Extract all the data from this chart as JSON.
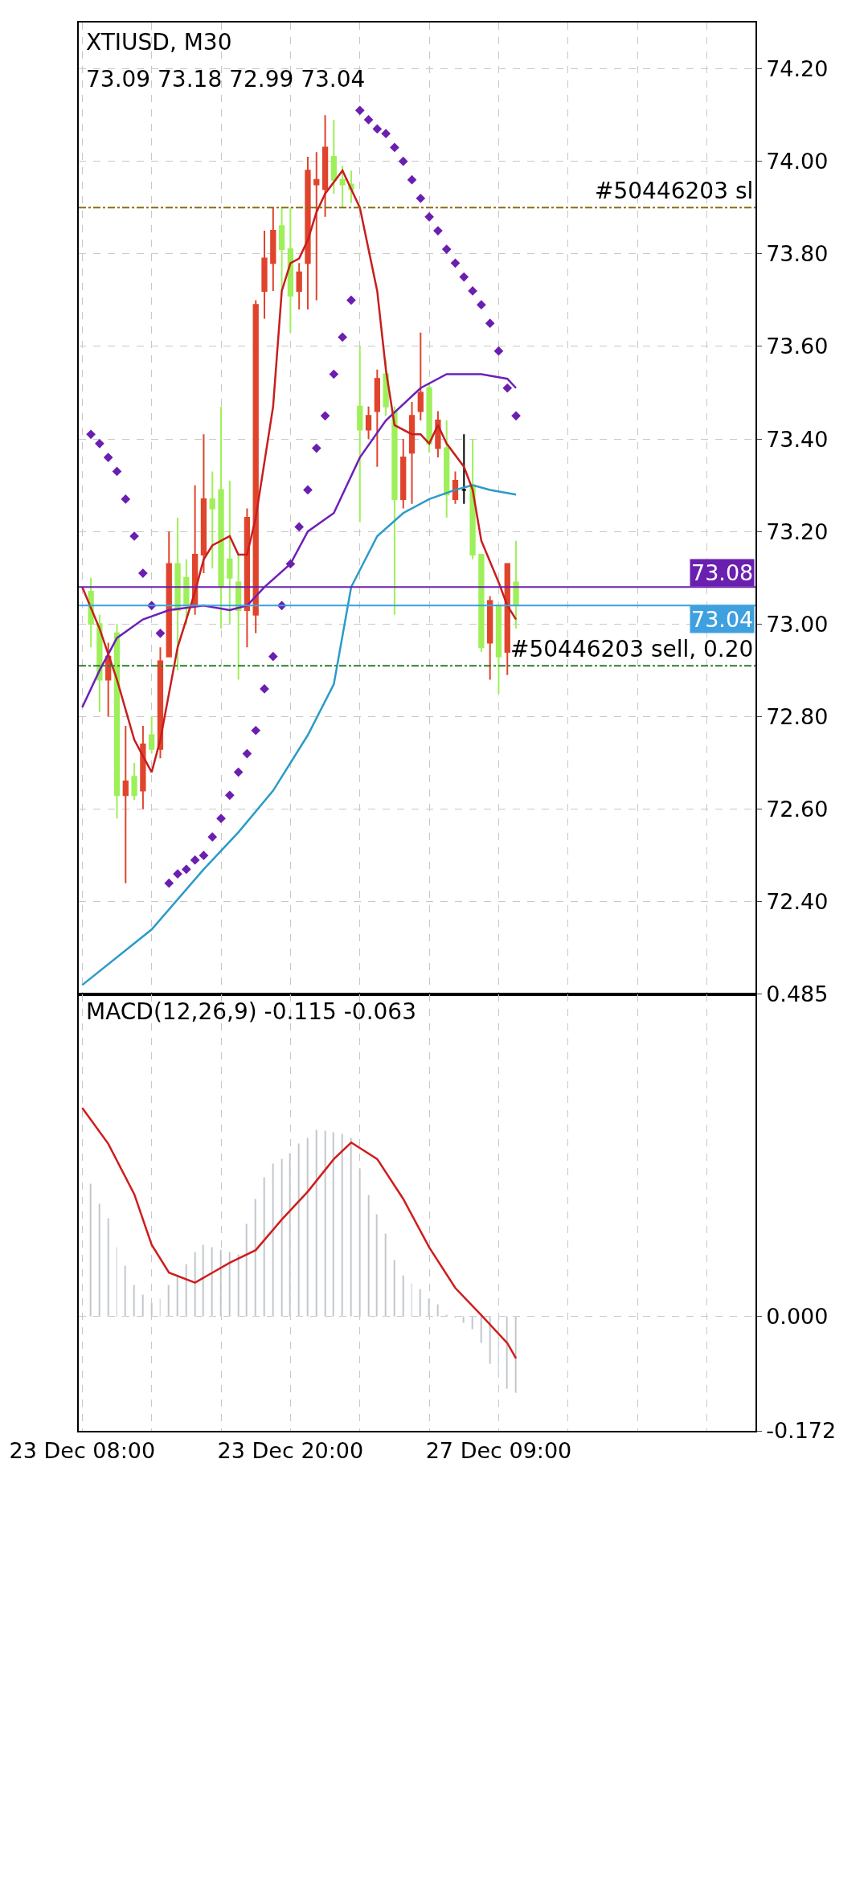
{
  "chart_data": [
    {
      "type": "candlestick",
      "title": "XTIUSD, M30",
      "subtitle": "73.09 73.18 72.99 73.04",
      "categories": [
        null,
        null,
        null,
        null,
        null,
        null,
        null,
        null,
        null,
        null,
        null,
        null,
        null,
        null,
        null,
        null,
        null,
        null,
        null,
        null,
        null,
        null,
        null,
        null,
        null,
        null,
        null,
        null,
        null,
        null,
        null,
        null,
        null,
        null,
        null,
        null,
        null,
        null,
        null,
        null,
        null,
        null,
        null,
        null,
        null,
        null,
        null,
        null,
        null,
        null,
        null,
        null,
        null,
        null,
        null,
        null,
        null,
        null,
        null,
        null,
        null,
        null,
        null,
        null,
        null,
        null,
        null,
        null,
        null,
        null,
        null,
        null,
        null,
        null,
        null,
        null,
        null,
        null
      ],
      "ohlc": [
        null,
        [
          73.07,
          73.1,
          72.95,
          73.0
        ],
        [
          73.0,
          73.02,
          72.81,
          72.88
        ],
        [
          72.88,
          72.96,
          72.8,
          72.93
        ],
        [
          72.98,
          73.0,
          72.58,
          72.63
        ],
        [
          72.63,
          72.78,
          72.44,
          72.66
        ],
        [
          72.67,
          72.7,
          72.62,
          72.63
        ],
        [
          72.64,
          72.78,
          72.6,
          72.74
        ],
        [
          72.76,
          72.8,
          72.72,
          72.73
        ],
        [
          72.73,
          72.95,
          72.71,
          72.92
        ],
        [
          72.93,
          73.2,
          72.93,
          73.13
        ],
        [
          73.13,
          73.23,
          72.9,
          73.03
        ],
        [
          73.1,
          73.14,
          73.0,
          73.04
        ],
        [
          73.04,
          73.3,
          73.02,
          73.15
        ],
        [
          73.15,
          73.41,
          73.11,
          73.27
        ],
        [
          73.27,
          73.33,
          73.12,
          73.25
        ],
        [
          73.29,
          73.47,
          72.99,
          73.08
        ],
        [
          73.14,
          73.31,
          73.0,
          73.1
        ],
        [
          73.09,
          73.15,
          72.88,
          73.03
        ],
        [
          73.03,
          73.25,
          72.95,
          73.23
        ],
        [
          73.02,
          73.7,
          72.98,
          73.69
        ],
        [
          73.72,
          73.85,
          73.66,
          73.79
        ],
        [
          73.78,
          73.9,
          73.72,
          73.85
        ],
        [
          73.86,
          73.9,
          73.72,
          73.81
        ],
        [
          73.81,
          73.9,
          73.63,
          73.71
        ],
        [
          73.72,
          73.78,
          73.68,
          73.76
        ],
        [
          73.78,
          74.01,
          73.68,
          73.98
        ],
        [
          73.95,
          74.02,
          73.7,
          73.96
        ],
        [
          73.94,
          74.1,
          73.88,
          74.03
        ],
        [
          74.01,
          74.09,
          73.93,
          73.96
        ],
        [
          73.96,
          73.99,
          73.9,
          73.95
        ],
        [
          73.95,
          73.98,
          73.91,
          73.94
        ],
        [
          73.47,
          73.6,
          73.22,
          73.42
        ],
        [
          73.42,
          73.47,
          73.4,
          73.45
        ],
        [
          73.46,
          73.55,
          73.34,
          73.53
        ],
        [
          73.54,
          73.57,
          73.45,
          73.47
        ],
        [
          73.46,
          73.47,
          73.02,
          73.27
        ],
        [
          73.27,
          73.4,
          73.25,
          73.36
        ],
        [
          73.37,
          73.48,
          73.26,
          73.45
        ],
        [
          73.46,
          73.63,
          73.44,
          73.5
        ],
        [
          73.51,
          73.52,
          73.37,
          73.39
        ],
        [
          73.38,
          73.46,
          73.36,
          73.44
        ],
        [
          73.38,
          73.44,
          73.23,
          73.28
        ],
        [
          73.27,
          73.33,
          73.26,
          73.31
        ],
        [
          73.29,
          73.41,
          73.26,
          73.29
        ],
        [
          73.3,
          73.4,
          73.14,
          73.15
        ],
        [
          73.15,
          73.15,
          72.94,
          72.95
        ],
        [
          72.96,
          73.06,
          72.88,
          73.05
        ],
        [
          73.04,
          73.04,
          72.85,
          72.93
        ],
        [
          72.94,
          73.13,
          72.89,
          73.13
        ],
        [
          73.09,
          73.18,
          72.99,
          73.04
        ],
        null,
        null,
        null,
        null,
        null,
        null,
        null,
        null,
        null,
        null,
        null,
        null,
        null,
        null,
        null,
        null,
        null,
        null,
        null,
        null,
        null,
        null,
        null,
        null,
        null,
        null,
        null
      ],
      "colors": [
        null,
        "#9ef05a",
        "#9ef05a",
        "#e0442c",
        "#9ef05a",
        "#e0442c",
        "#9ef05a",
        "#e0442c",
        "#9ef05a",
        "#e0442c",
        "#e0442c",
        "#9ef05a",
        "#9ef05a",
        "#e0442c",
        "#e0442c",
        "#9ef05a",
        "#9ef05a",
        "#9ef05a",
        "#9ef05a",
        "#e0442c",
        "#e0442c",
        "#e0442c",
        "#e0442c",
        "#9ef05a",
        "#9ef05a",
        "#e0442c",
        "#e0442c",
        "#e0442c",
        "#e0442c",
        "#9ef05a",
        "#9ef05a",
        "#9ef05a",
        "#9ef05a",
        "#e0442c",
        "#e0442c",
        "#9ef05a",
        "#9ef05a",
        "#e0442c",
        "#e0442c",
        "#e0442c",
        "#9ef05a",
        "#e0442c",
        "#9ef05a",
        "#e0442c",
        "#000000",
        "#9ef05a",
        "#9ef05a",
        "#e0442c",
        "#9ef05a",
        "#e0442c",
        "#9ef05a",
        null,
        null,
        null,
        null,
        null,
        null,
        null,
        null,
        null,
        null,
        null,
        null,
        null,
        null,
        null,
        null,
        null,
        null,
        null,
        null,
        null,
        null,
        null,
        null,
        null,
        null,
        null
      ],
      "series": [
        {
          "type": "line",
          "color": "#6e1fb8",
          "values": [
            72.82,
            null,
            72.9,
            null,
            72.97,
            null,
            null,
            73.01,
            null,
            null,
            73.03,
            null,
            null,
            null,
            73.04,
            null,
            null,
            73.03,
            null,
            73.04,
            null,
            73.08,
            null,
            null,
            73.13,
            null,
            73.2,
            null,
            null,
            73.24,
            null,
            null,
            73.36,
            null,
            null,
            73.44,
            null,
            null,
            null,
            73.51,
            null,
            null,
            73.54,
            null,
            null,
            null,
            73.54,
            null,
            null,
            73.53,
            73.51,
            null,
            null,
            null,
            null,
            null,
            null,
            null,
            null,
            null,
            null,
            null,
            null,
            null,
            null,
            null,
            null,
            null,
            null,
            null,
            null,
            null,
            null,
            null,
            null,
            null,
            null,
            null
          ]
        },
        {
          "type": "line",
          "color": "#2a9bc8",
          "values": [
            72.22,
            null,
            null,
            null,
            null,
            null,
            null,
            null,
            72.34,
            null,
            null,
            null,
            null,
            null,
            72.47,
            null,
            null,
            null,
            72.55,
            null,
            null,
            null,
            72.64,
            null,
            null,
            null,
            72.76,
            null,
            null,
            72.87,
            null,
            73.08,
            null,
            null,
            73.19,
            null,
            null,
            73.24,
            null,
            null,
            73.27,
            null,
            null,
            73.29,
            null,
            73.3,
            null,
            73.29,
            null,
            null,
            73.28,
            null,
            null,
            null,
            null,
            null,
            null,
            null,
            null,
            null,
            null,
            null,
            null,
            null,
            null,
            null,
            null,
            null,
            null,
            null,
            null,
            null,
            null,
            null,
            null,
            null,
            null,
            null
          ]
        },
        {
          "type": "line",
          "color": "#c81e1e",
          "values": [
            73.08,
            null,
            72.99,
            null,
            72.88,
            null,
            72.75,
            null,
            72.68,
            72.75,
            null,
            72.95,
            null,
            73.07,
            73.14,
            73.17,
            null,
            73.19,
            73.15,
            73.15,
            73.23,
            null,
            73.47,
            73.72,
            73.78,
            73.79,
            73.83,
            73.89,
            73.93,
            null,
            73.98,
            null,
            73.9,
            null,
            73.72,
            73.55,
            73.43,
            null,
            73.41,
            73.41,
            73.39,
            73.43,
            73.39,
            null,
            73.34,
            73.29,
            73.18,
            null,
            73.09,
            73.04,
            73.01,
            null,
            null,
            null,
            null,
            null,
            null,
            null,
            null,
            null,
            null,
            null,
            null,
            null,
            null,
            null,
            null,
            null,
            null,
            null,
            null,
            null,
            null,
            null,
            null,
            null,
            null,
            null
          ]
        },
        {
          "type": "scatter",
          "marker": "diamond",
          "color": "#6a1fb0",
          "values": [
            null,
            73.41,
            73.39,
            73.36,
            73.33,
            73.27,
            73.19,
            73.11,
            73.04,
            72.98,
            72.44,
            72.46,
            72.47,
            72.49,
            72.5,
            72.54,
            72.58,
            72.63,
            72.68,
            72.72,
            72.77,
            72.86,
            72.93,
            73.04,
            73.13,
            73.21,
            73.29,
            73.38,
            73.45,
            73.54,
            73.62,
            73.7,
            74.11,
            74.09,
            74.07,
            74.06,
            74.03,
            74.0,
            73.96,
            73.92,
            73.88,
            73.85,
            73.81,
            73.78,
            73.75,
            73.72,
            73.69,
            73.65,
            73.59,
            73.51,
            73.45,
            null,
            null,
            null,
            null,
            null,
            null,
            null,
            null,
            null,
            null,
            null,
            null,
            null,
            null,
            null,
            null,
            null,
            null,
            null,
            null,
            null,
            null,
            null,
            null,
            null,
            null,
            null
          ]
        }
      ],
      "ylim": [
        72.2,
        74.3
      ],
      "yticks": [
        {
          "value": 72.4,
          "label": "72.40"
        },
        {
          "value": 72.6,
          "label": "72.60"
        },
        {
          "value": 72.8,
          "label": "72.80"
        },
        {
          "value": 73.0,
          "label": "73.00"
        },
        {
          "value": 73.2,
          "label": "73.20"
        },
        {
          "value": 73.4,
          "label": "73.40"
        },
        {
          "value": 73.6,
          "label": "73.60"
        },
        {
          "value": 73.8,
          "label": "73.80"
        },
        {
          "value": 74.0,
          "label": "74.00"
        },
        {
          "value": 74.2,
          "label": "74.20"
        }
      ],
      "grid": true,
      "tick_labels": "y",
      "ref_lines": [
        {
          "axis": "y",
          "value": 73.9,
          "label": "#50446203 sl",
          "color": "#8b6a14",
          "line_style": "dashed"
        },
        {
          "axis": "y",
          "value": 72.91,
          "label": "#50446203 sell, 0.20",
          "color": "#2e7d2e",
          "line_style": "dashed"
        },
        {
          "axis": "y",
          "value": 73.08,
          "label": "73.08",
          "color": "#6a1fb0",
          "line_style": "solid"
        },
        {
          "axis": "y",
          "value": 73.04,
          "label": "73.04",
          "color": "#3fa0e0",
          "line_style": "solid"
        }
      ]
    },
    {
      "type": "bar",
      "title": "MACD(12,26,9) -0.115 -0.063",
      "color": "#c0c0c0",
      "categories": [
        "23 Dec 08:00",
        null,
        null,
        null,
        null,
        null,
        null,
        null,
        null,
        null,
        null,
        null,
        null,
        null,
        null,
        null,
        null,
        null,
        null,
        null,
        null,
        null,
        null,
        null,
        "23 Dec 20:00",
        null,
        null,
        null,
        null,
        null,
        null,
        null,
        null,
        null,
        null,
        null,
        null,
        null,
        null,
        null,
        null,
        null,
        null,
        null,
        null,
        null,
        null,
        null,
        "27 Dec 09:00",
        null,
        null,
        null,
        null,
        null,
        null,
        null,
        null,
        null,
        null,
        null,
        null,
        null,
        null,
        null,
        null,
        null,
        null,
        null,
        null,
        null,
        null,
        null,
        null,
        null,
        null,
        null,
        null,
        null
      ],
      "values": [
        null,
        0.199,
        0.169,
        0.148,
        0.104,
        0.076,
        0.047,
        0.032,
        0.021,
        0.026,
        0.047,
        0.062,
        0.078,
        0.097,
        0.108,
        0.104,
        0.1,
        0.097,
        0.093,
        0.139,
        0.177,
        0.209,
        0.23,
        0.237,
        0.245,
        0.26,
        0.268,
        0.281,
        0.279,
        0.277,
        0.274,
        0.269,
        0.222,
        0.183,
        0.154,
        0.125,
        0.085,
        0.062,
        0.049,
        0.041,
        0.026,
        0.018,
        0.002,
        -0.002,
        -0.01,
        -0.02,
        -0.04,
        -0.071,
        -0.086,
        -0.109,
        -0.115,
        null,
        null,
        null,
        null,
        null,
        null,
        null,
        null,
        null,
        null,
        null,
        null,
        null,
        null,
        null,
        null,
        null,
        null,
        null,
        null,
        null,
        null,
        null,
        null,
        null,
        null,
        null
      ],
      "series": [
        {
          "type": "line",
          "color": "#d01c1c",
          "values": [
            0.314,
            null,
            null,
            0.26,
            null,
            null,
            0.184,
            null,
            0.108,
            null,
            0.066,
            null,
            null,
            0.051,
            null,
            0.066,
            null,
            0.081,
            null,
            null,
            0.1,
            null,
            null,
            0.146,
            null,
            null,
            0.188,
            null,
            null,
            0.237,
            null,
            0.262,
            null,
            null,
            0.237,
            null,
            null,
            0.177,
            null,
            null,
            0.104,
            null,
            null,
            0.043,
            null,
            null,
            0.002,
            null,
            null,
            -0.04,
            -0.063,
            null,
            null,
            null,
            null,
            null,
            null,
            null,
            null,
            null,
            null,
            null,
            null,
            null,
            null,
            null,
            null,
            null,
            null,
            null,
            null,
            null,
            null,
            null,
            null,
            null,
            null,
            null
          ]
        }
      ],
      "ylim": [
        -0.172,
        0.485
      ],
      "yticks": [
        {
          "value": -0.172,
          "label": "-0.172"
        },
        {
          "value": 0,
          "label": "0.000"
        },
        {
          "value": 0.485,
          "label": "0.485"
        }
      ],
      "grid": true
    }
  ]
}
